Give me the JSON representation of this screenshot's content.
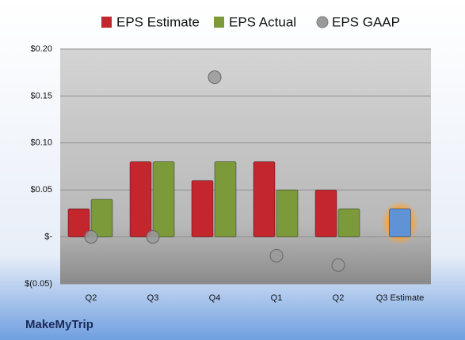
{
  "chart_data": {
    "type": "bar",
    "source": "MakeMyTrip",
    "categories": [
      "Q2",
      "Q3",
      "Q4",
      "Q1",
      "Q2",
      "Q3 Estimate"
    ],
    "series": [
      {
        "name": "EPS Estimate",
        "kind": "bar",
        "color": "#c3262c",
        "colors": [
          "#c3262c",
          "#c3262c",
          "#c3262c",
          "#c3262c",
          "#c3262c",
          "#5f93d6"
        ],
        "values": [
          0.03,
          0.08,
          0.06,
          0.08,
          0.05,
          0.03
        ]
      },
      {
        "name": "EPS Actual",
        "kind": "bar",
        "color": "#7c9a3a",
        "values": [
          0.04,
          0.08,
          0.08,
          0.05,
          0.03,
          null
        ]
      },
      {
        "name": "EPS GAAP",
        "kind": "dot",
        "color": "#9a9a9a",
        "values": [
          0,
          0,
          0.17,
          -0.02,
          -0.03,
          null
        ]
      }
    ],
    "ylim": [
      -0.05,
      0.2
    ],
    "yticks": [
      {
        "value": -0.05,
        "label": "$(0.05)"
      },
      {
        "value": 0,
        "label": "$-"
      },
      {
        "value": 0.05,
        "label": "$0.05"
      },
      {
        "value": 0.1,
        "label": "$0.10"
      },
      {
        "value": 0.15,
        "label": "$0.15"
      },
      {
        "value": 0.2,
        "label": "$0.20"
      }
    ],
    "grid": true
  }
}
